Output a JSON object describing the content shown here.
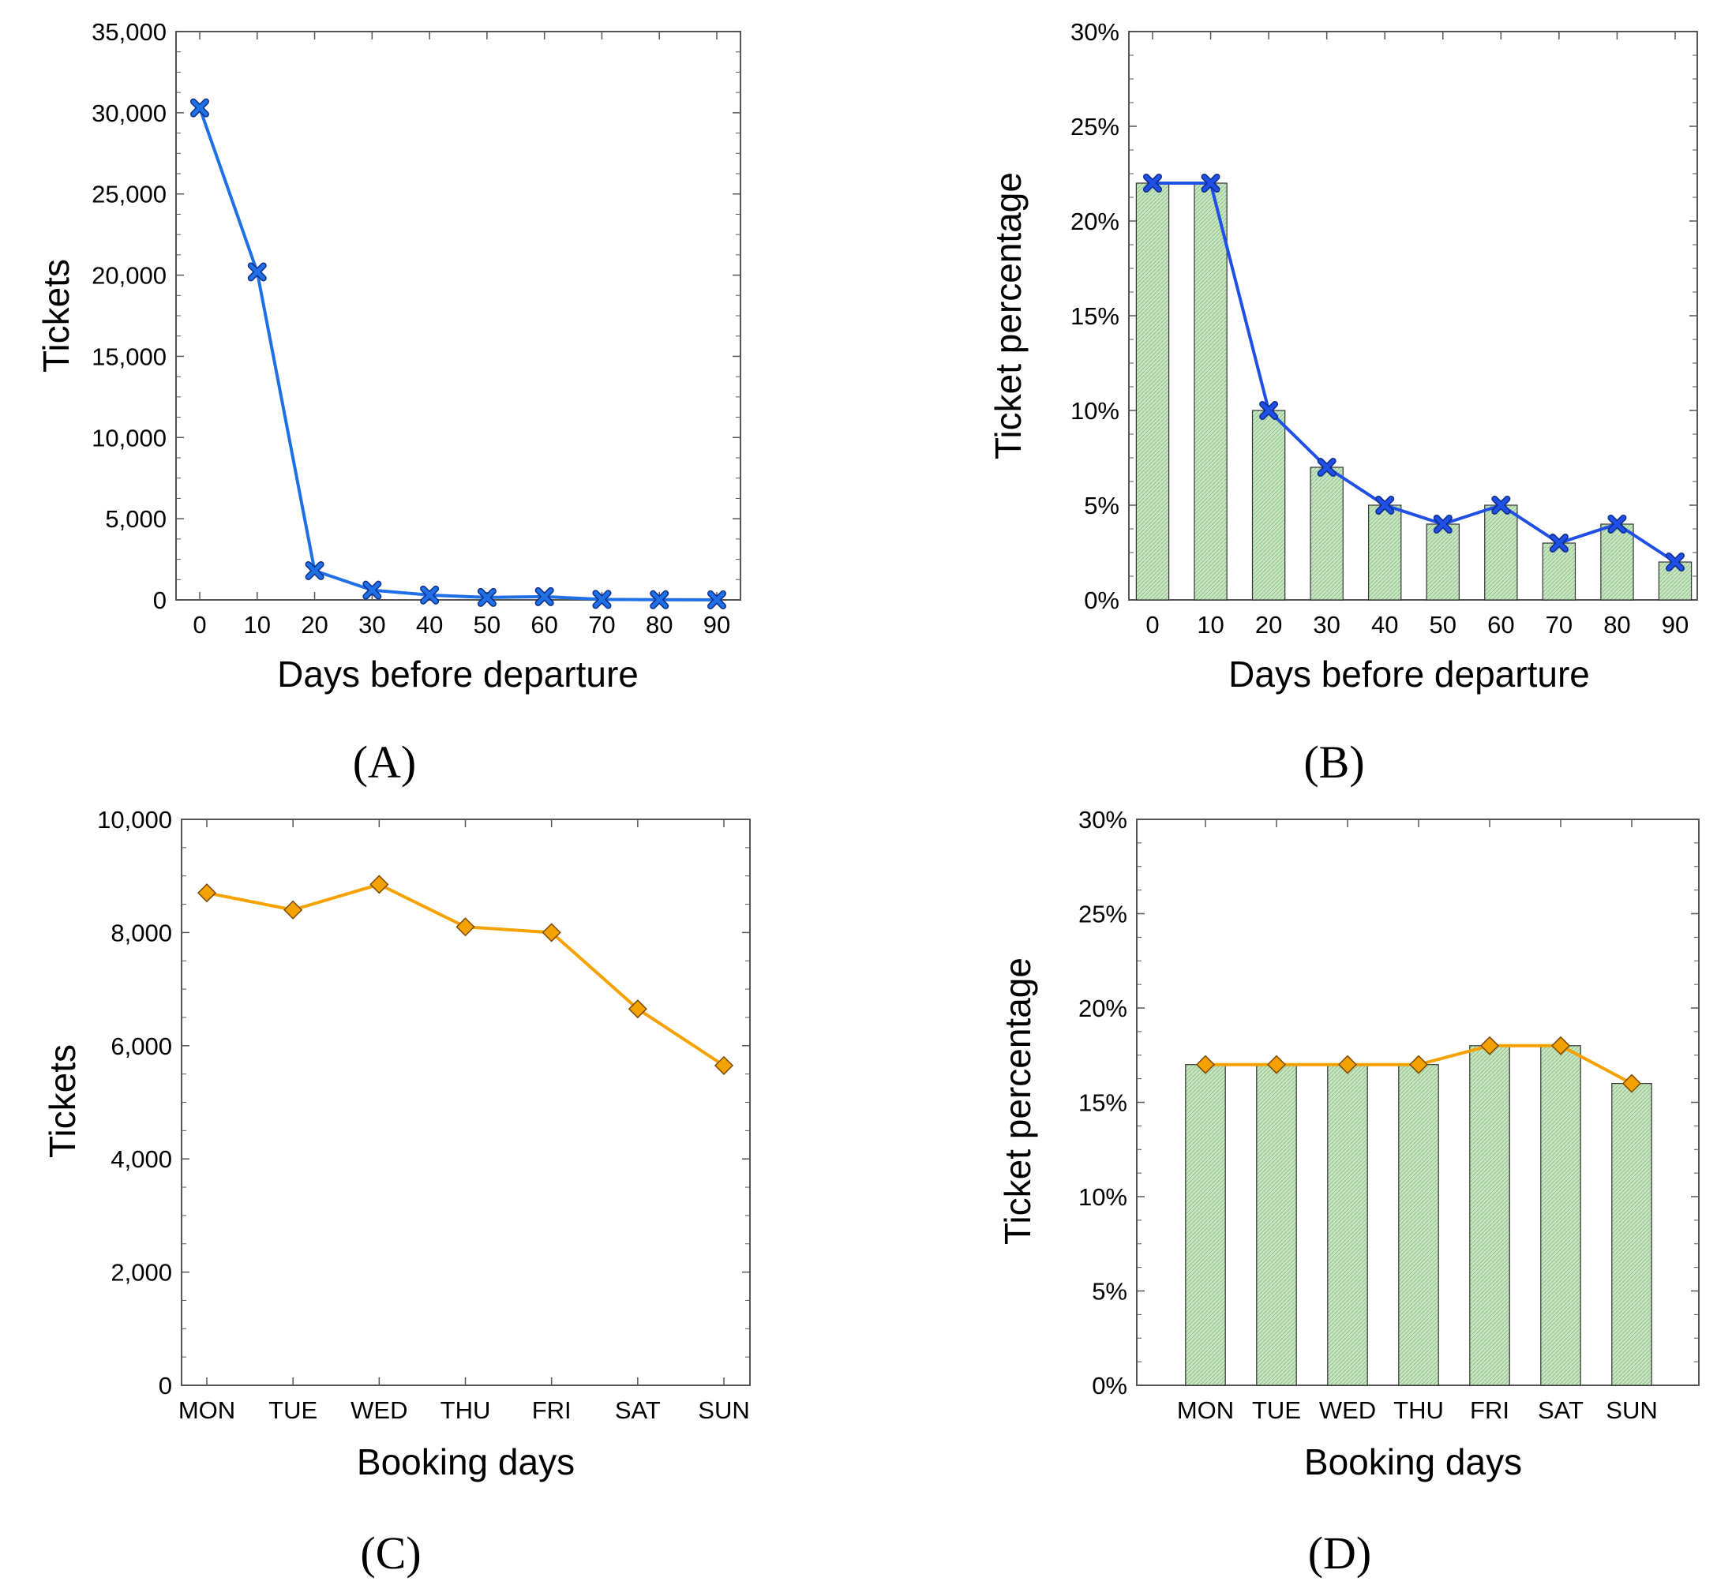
{
  "chart_data": [
    {
      "panel": "(A)",
      "type": "line",
      "xlabel": "Days before departure",
      "ylabel": "Tickets",
      "x": [
        0,
        10,
        20,
        30,
        40,
        50,
        60,
        70,
        80,
        90
      ],
      "x_tick_labels": [
        "0",
        "10",
        "20",
        "30",
        "40",
        "50",
        "60",
        "70",
        "80",
        "90"
      ],
      "y_tick_labels": [
        "0",
        "5,000",
        "10,000",
        "15,000",
        "20,000",
        "25,000",
        "30,000",
        "35,000"
      ],
      "ylim": [
        0,
        35000
      ],
      "series": [
        {
          "values": [
            30300,
            20200,
            1800,
            600,
            300,
            150,
            200,
            30,
            10,
            5
          ],
          "color": "#1f6fe5",
          "marker": "x"
        }
      ]
    },
    {
      "panel": "(B)",
      "type": "bar",
      "xlabel": "Days before departure",
      "ylabel": "Ticket percentage",
      "categories": [
        "0",
        "10",
        "20",
        "30",
        "40",
        "50",
        "60",
        "70",
        "80",
        "90"
      ],
      "y_tick_labels": [
        "0%",
        "5%",
        "10%",
        "15%",
        "20%",
        "25%",
        "30%"
      ],
      "ylim": [
        0,
        30
      ],
      "bar_values": [
        22,
        22,
        10,
        7,
        5,
        4,
        5,
        3,
        4,
        2
      ],
      "bar_color": "#c8e6c3",
      "series": [
        {
          "values": [
            22,
            22,
            10,
            7,
            5,
            4,
            5,
            3,
            4,
            2
          ],
          "color": "#1f4fe5",
          "marker": "x"
        }
      ]
    },
    {
      "panel": "(C)",
      "type": "line",
      "xlabel": "Booking days",
      "ylabel": "Tickets",
      "categories": [
        "MON",
        "TUE",
        "WED",
        "THU",
        "FRI",
        "SAT",
        "SUN"
      ],
      "y_tick_labels": [
        "0",
        "2,000",
        "4,000",
        "6,000",
        "8,000",
        "10,000"
      ],
      "ylim": [
        0,
        10000
      ],
      "series": [
        {
          "values": [
            8700,
            8400,
            8850,
            8100,
            8000,
            6650,
            5650
          ],
          "color": "#f5a100",
          "marker": "diamond"
        }
      ]
    },
    {
      "panel": "(D)",
      "type": "bar",
      "xlabel": "Booking days",
      "ylabel": "Ticket percentage",
      "categories": [
        "MON",
        "TUE",
        "WED",
        "THU",
        "FRI",
        "SAT",
        "SUN"
      ],
      "y_tick_labels": [
        "0%",
        "5%",
        "10%",
        "15%",
        "20%",
        "25%",
        "30%"
      ],
      "ylim": [
        0,
        30
      ],
      "bar_values": [
        17,
        17,
        17,
        17,
        18,
        18,
        16
      ],
      "bar_color": "#c8e6c3",
      "series": [
        {
          "values": [
            17,
            17,
            17,
            17,
            18,
            18,
            16
          ],
          "color": "#f5a100",
          "marker": "diamond"
        }
      ]
    }
  ]
}
